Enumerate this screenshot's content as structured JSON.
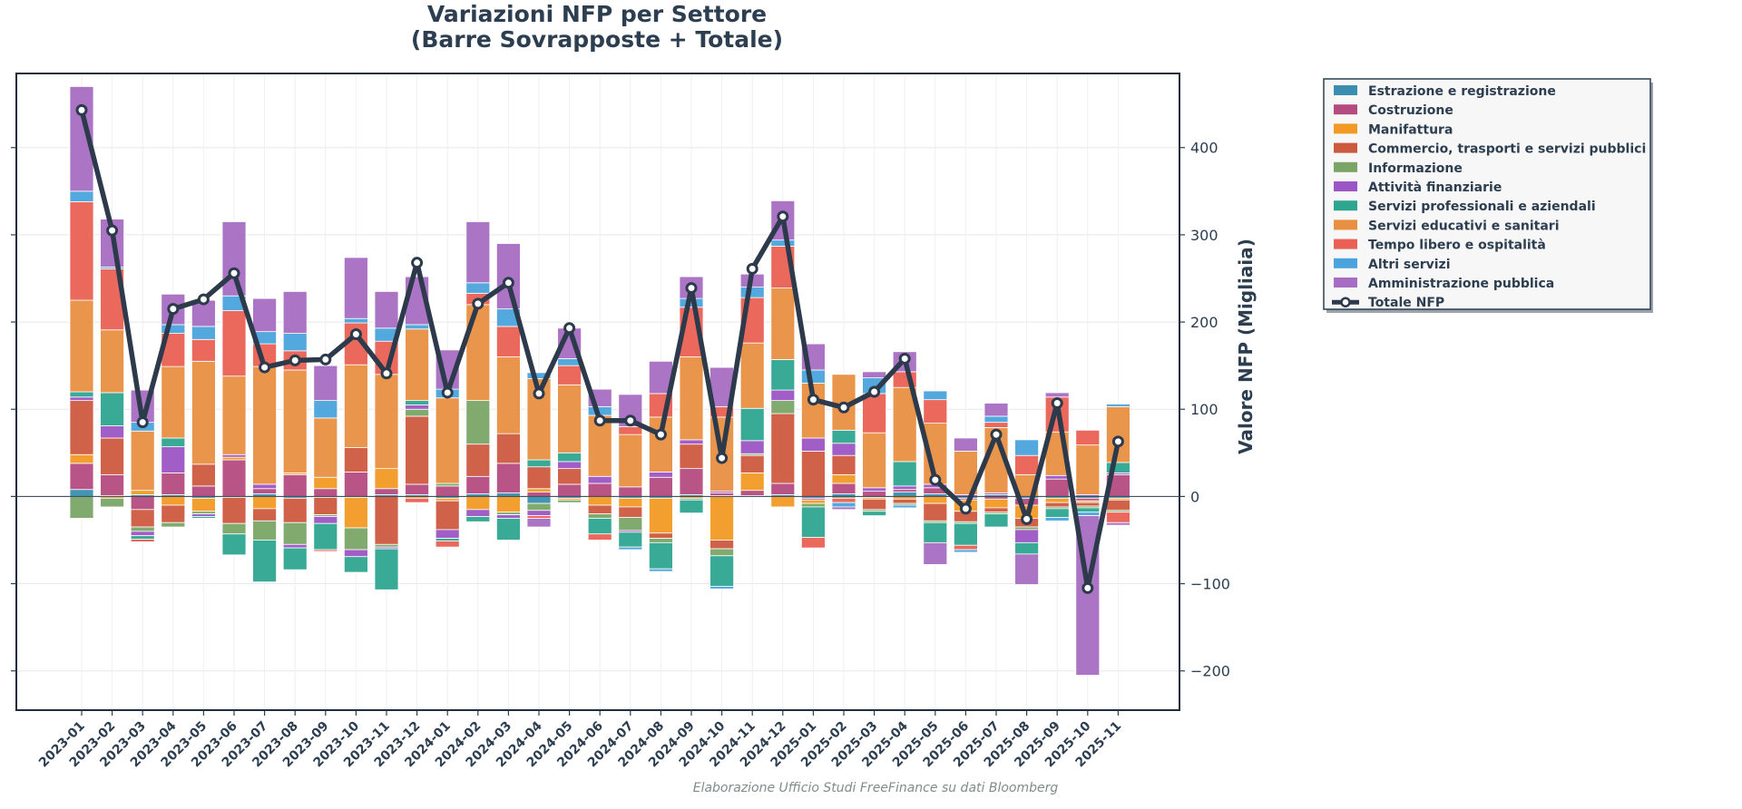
{
  "chart_data": {
    "type": "bar",
    "stacking": "diverging",
    "title_lines": [
      "Variazioni NFP per Settore",
      "(Barre Sovrapposte + Totale)"
    ],
    "ylabel": "Valore NFP (Migliaia)",
    "xlabel": "",
    "ylim": [
      -245,
      485
    ],
    "yticks": [
      -200,
      -100,
      0,
      100,
      200,
      300,
      400
    ],
    "ytick_labels": [
      "−200",
      "−100",
      "0",
      "100",
      "200",
      "300",
      "400"
    ],
    "grid": true,
    "legend_position": "top-right, outside plot",
    "categories": [
      "2023-01",
      "2023-02",
      "2023-03",
      "2023-04",
      "2023-05",
      "2023-06",
      "2023-07",
      "2023-08",
      "2023-09",
      "2023-10",
      "2023-11",
      "2023-12",
      "2024-01",
      "2024-02",
      "2024-03",
      "2024-04",
      "2024-05",
      "2024-06",
      "2024-07",
      "2024-08",
      "2024-09",
      "2024-10",
      "2024-11",
      "2024-12",
      "2025-01",
      "2025-02",
      "2025-03",
      "2025-04",
      "2025-05",
      "2025-06",
      "2025-07",
      "2025-08",
      "2025-09",
      "2025-10",
      "2025-11"
    ],
    "series": [
      {
        "name": "Estrazione e registrazione",
        "color": "#3a8fb0",
        "values": [
          8,
          1,
          2,
          2,
          -2,
          -1,
          3,
          -2,
          -1,
          -1,
          2,
          2,
          -2,
          3,
          4,
          -8,
          -2,
          0,
          -2,
          -2,
          2,
          1,
          1,
          2,
          -2,
          3,
          -1,
          5,
          3,
          -2,
          2,
          -2,
          -2,
          -2,
          -2
        ]
      },
      {
        "name": "Costruzione",
        "color": "#b44c7f",
        "values": [
          30,
          24,
          -15,
          25,
          12,
          42,
          6,
          25,
          9,
          28,
          7,
          12,
          12,
          20,
          34,
          5,
          14,
          15,
          11,
          22,
          30,
          3,
          6,
          13,
          -2,
          12,
          6,
          3,
          7,
          -2,
          -3,
          -8,
          20,
          -3,
          25
        ]
      },
      {
        "name": "Manifattura",
        "color": "#f29a24",
        "values": [
          10,
          -2,
          5,
          -10,
          -15,
          3,
          -14,
          2,
          13,
          -35,
          23,
          -2,
          -3,
          -15,
          -18,
          4,
          -2,
          -10,
          -10,
          -40,
          -2,
          -50,
          20,
          -12,
          -4,
          10,
          -2,
          -3,
          -8,
          -13,
          -10,
          -15,
          -5,
          -2,
          -2
        ]
      },
      {
        "name": "Commercio, trasporti e servizi pubblici",
        "color": "#cc5a3f",
        "values": [
          62,
          42,
          -20,
          -20,
          25,
          -30,
          -14,
          -28,
          -20,
          28,
          -55,
          78,
          -33,
          37,
          34,
          25,
          18,
          -10,
          -12,
          -6,
          28,
          -10,
          20,
          80,
          52,
          22,
          -12,
          -5,
          -20,
          -12,
          -5,
          -10,
          -5,
          -4,
          -12
        ]
      },
      {
        "name": "Informazione",
        "color": "#7aa566",
        "values": [
          -25,
          -10,
          -5,
          -5,
          -3,
          -12,
          -22,
          -25,
          -2,
          -25,
          -3,
          8,
          3,
          50,
          -3,
          -8,
          -3,
          -5,
          -15,
          -5,
          -2,
          -8,
          2,
          15,
          -4,
          -2,
          -2,
          -2,
          -2,
          -2,
          -2,
          -3,
          -2,
          -2,
          -2
        ]
      },
      {
        "name": "Attività finanziarie",
        "color": "#9c55c4",
        "values": [
          4,
          14,
          -5,
          30,
          -3,
          3,
          5,
          -4,
          -8,
          -8,
          -2,
          5,
          -10,
          -8,
          -4,
          -6,
          8,
          8,
          -2,
          6,
          5,
          2,
          15,
          12,
          15,
          14,
          4,
          4,
          4,
          2,
          2,
          -15,
          4,
          2,
          2
        ]
      },
      {
        "name": "Servizi professionali e aziendali",
        "color": "#2ea58f",
        "values": [
          6,
          38,
          -4,
          10,
          -2,
          -24,
          -48,
          -25,
          -30,
          -18,
          -47,
          5,
          -3,
          -6,
          -25,
          8,
          10,
          -18,
          -17,
          -30,
          -15,
          -35,
          37,
          35,
          -35,
          15,
          -5,
          28,
          -23,
          -25,
          -15,
          -13,
          -10,
          -5,
          12
        ]
      },
      {
        "name": "Servizi educativi e sanitari",
        "color": "#e88f42",
        "values": [
          105,
          72,
          68,
          82,
          118,
          90,
          135,
          118,
          68,
          95,
          108,
          82,
          98,
          110,
          88,
          93,
          78,
          70,
          60,
          63,
          95,
          85,
          75,
          82,
          63,
          64,
          63,
          85,
          70,
          50,
          75,
          25,
          50,
          57,
          64
        ]
      },
      {
        "name": "Tempo libero e ospitalità",
        "color": "#ea6054",
        "values": [
          113,
          70,
          -3,
          38,
          25,
          75,
          26,
          22,
          -2,
          48,
          38,
          -5,
          -7,
          13,
          35,
          -3,
          22,
          -7,
          9,
          27,
          57,
          12,
          52,
          48,
          -12,
          -5,
          45,
          18,
          27,
          -5,
          6,
          22,
          40,
          17,
          -12
        ]
      },
      {
        "name": "Altri servizi",
        "color": "#4aa3dc",
        "values": [
          12,
          2,
          10,
          10,
          15,
          17,
          14,
          20,
          20,
          5,
          15,
          5,
          10,
          12,
          20,
          7,
          8,
          10,
          -3,
          -3,
          10,
          -3,
          12,
          7,
          15,
          -5,
          18,
          -3,
          10,
          -3,
          7,
          18,
          -4,
          -4,
          3
        ]
      },
      {
        "name": "Amministrazione pubblica",
        "color": "#a66dc2",
        "values": [
          120,
          55,
          37,
          35,
          30,
          85,
          38,
          48,
          40,
          70,
          42,
          55,
          45,
          70,
          75,
          -10,
          35,
          20,
          37,
          37,
          25,
          45,
          15,
          45,
          30,
          -3,
          7,
          23,
          -25,
          15,
          15,
          -35,
          5,
          -183,
          -3
        ]
      }
    ],
    "total": {
      "name": "Totale NFP",
      "color": "#2c3a4b",
      "values": [
        443,
        305,
        85,
        215,
        226,
        256,
        148,
        156,
        157,
        186,
        141,
        268,
        119,
        221,
        245,
        118,
        193,
        87,
        87,
        71,
        239,
        44,
        261,
        321,
        111,
        102,
        120,
        158,
        19,
        -14,
        71,
        -26,
        107,
        -105,
        63
      ]
    },
    "source_note": "Elaborazione Ufficio Studi FreeFinance su dati Bloomberg"
  }
}
